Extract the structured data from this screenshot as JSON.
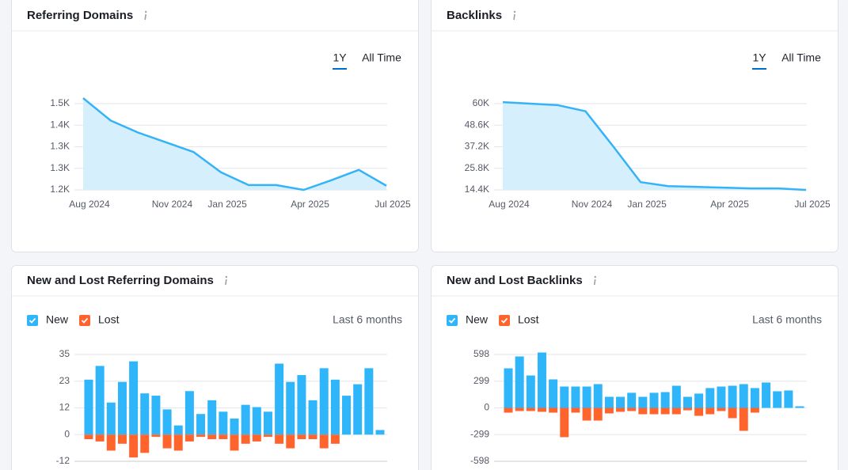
{
  "chart_data": [
    {
      "type": "line",
      "title": "Referring Domains",
      "tabs": [
        "1Y",
        "All Time"
      ],
      "categories": [
        "Aug 2024",
        null,
        null,
        "Nov 2024",
        null,
        "Jan 2025",
        null,
        null,
        "Apr 2025",
        null,
        null,
        "Jul 2025"
      ],
      "values": [
        1466,
        1401,
        1366,
        1338,
        1310,
        1251,
        1214,
        1214,
        1200,
        1228,
        1258,
        1212
      ],
      "color": "#34b3f8",
      "area_color": "#d6effd",
      "ylim": [
        1200,
        1450
      ],
      "yticks": [
        {
          "value": 1200,
          "label": "1.2K"
        },
        {
          "value": 1262.5,
          "label": "1.3K"
        },
        {
          "value": 1325,
          "label": "1.3K"
        },
        {
          "value": 1387.5,
          "label": "1.4K"
        },
        {
          "value": 1450,
          "label": "1.5K"
        }
      ],
      "grid": true
    },
    {
      "type": "line",
      "title": "Backlinks",
      "tabs": [
        "1Y",
        "All Time"
      ],
      "categories": [
        "Aug 2024",
        null,
        null,
        "Nov 2024",
        null,
        "Jan 2025",
        null,
        null,
        "Apr 2025",
        null,
        null,
        "Jul 2025"
      ],
      "values": [
        60800,
        60000,
        59200,
        56000,
        37500,
        18500,
        16400,
        16000,
        15600,
        15200,
        15200,
        14400
      ],
      "color": "#34b3f8",
      "area_color": "#d6effd",
      "ylim": [
        14400,
        60000
      ],
      "yticks": [
        {
          "value": 14400,
          "label": "14.4K"
        },
        {
          "value": 25800,
          "label": "25.8K"
        },
        {
          "value": 37200,
          "label": "37.2K"
        },
        {
          "value": 48600,
          "label": "48.6K"
        },
        {
          "value": 60000,
          "label": "60K"
        }
      ],
      "grid": true
    },
    {
      "type": "bar",
      "title": "New and Lost Referring Domains",
      "period": "Last 6 months",
      "series": [
        {
          "name": "New",
          "color": "#2fb5fa",
          "values": [
            24,
            30,
            14,
            23,
            32,
            18,
            17,
            11,
            4,
            19,
            9,
            15,
            10,
            7,
            13,
            12,
            10,
            31,
            23,
            26,
            15,
            29,
            24,
            17,
            22,
            29,
            2
          ]
        },
        {
          "name": "Lost",
          "color": "#ff642d",
          "values": [
            -2,
            -3,
            -7,
            -4,
            -10,
            -8,
            -1,
            -6,
            -7,
            -3,
            -1,
            -2,
            -2,
            -7,
            -4,
            -3,
            -1,
            -4,
            -6,
            -2,
            -2,
            -6,
            -4,
            0,
            0,
            0,
            0
          ]
        }
      ],
      "ylim": [
        -11.67,
        35
      ],
      "yticks": [
        {
          "value": -11.67,
          "label": "-12"
        },
        0,
        {
          "value": 11.67,
          "label": "12"
        },
        {
          "value": 23.33,
          "label": "23"
        },
        35
      ],
      "grid": true
    },
    {
      "type": "bar",
      "title": "New and Lost Backlinks",
      "period": "Last 6 months",
      "series": [
        {
          "name": "New",
          "color": "#2fb5fa",
          "values": [
            443,
            576,
            363,
            620,
            319,
            239,
            239,
            239,
            266,
            124,
            124,
            169,
            124,
            169,
            177,
            248,
            124,
            160,
            222,
            239,
            248,
            266,
            222,
            284,
            186,
            195,
            18
          ]
        },
        {
          "name": "Lost",
          "color": "#ff642d",
          "values": [
            -53,
            -35,
            -35,
            -44,
            -53,
            -328,
            -53,
            -142,
            -142,
            -62,
            -44,
            -35,
            -71,
            -71,
            -71,
            -71,
            -27,
            -89,
            -71,
            -35,
            -115,
            -257,
            -53,
            0,
            0,
            0,
            0
          ]
        }
      ],
      "ylim": [
        -598,
        598
      ],
      "yticks": [
        -598,
        -299,
        0,
        299,
        598
      ],
      "grid": true
    }
  ]
}
